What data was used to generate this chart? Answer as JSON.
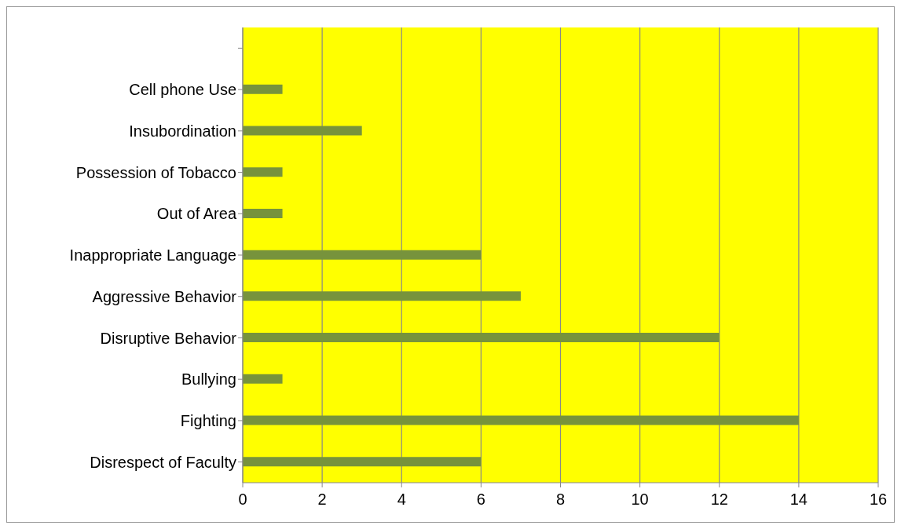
{
  "chart_data": {
    "type": "bar",
    "orientation": "horizontal",
    "categories": [
      null,
      "Cell phone Use",
      "Insubordination",
      "Possession of Tobacco",
      "Out of Area",
      "Inappropriate Language",
      "Aggressive Behavior",
      "Disruptive Behavior",
      "Bullying",
      "Fighting",
      "Disrespect of Faculty"
    ],
    "values": [
      null,
      1,
      3,
      1,
      1,
      6,
      7,
      12,
      1,
      14,
      6
    ],
    "color": "#77933c",
    "xlim": [
      0,
      16
    ],
    "xticks": [
      0,
      2,
      4,
      6,
      8,
      10,
      12,
      14,
      16
    ],
    "grid": "x"
  }
}
